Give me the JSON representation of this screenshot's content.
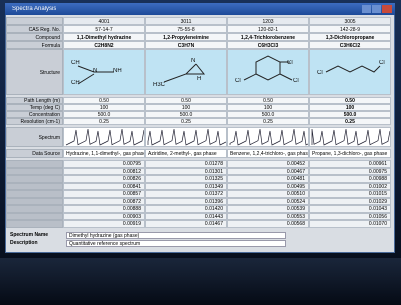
{
  "window": {
    "title": "Spectra Analysis"
  },
  "table": {
    "columns": [
      "4001",
      "3011",
      "1203",
      "3005"
    ],
    "rows": [
      {
        "label": "CAS Reg. No.",
        "cells": [
          "57-14-7",
          "75-55-8",
          "120-82-1",
          "142-28-9"
        ]
      },
      {
        "label": "Compound",
        "cells": [
          "1,1-Dimethyl hydrazine",
          "1,2-Propyleneimine",
          "1,2,4-Trichlorobenzene",
          "1,3-Dichloropropane"
        ]
      },
      {
        "label": "Formula",
        "cells": [
          "C2H8N2",
          "C3H7N",
          "C6H3Cl3",
          "C3H6Cl2"
        ]
      }
    ],
    "structure_label": "Structure",
    "structures": [
      {
        "atoms": [
          "CH",
          "N",
          "NH",
          "CH"
        ]
      },
      {
        "atoms": [
          "H3C",
          "N",
          "H"
        ]
      },
      {
        "atoms": [
          "Cl",
          "Cl",
          "Cl"
        ]
      },
      {
        "atoms": [
          "Cl",
          "Cl"
        ]
      }
    ],
    "params": [
      {
        "label": "Path Length (m)",
        "cells": [
          "0.50",
          "0.50",
          "0.50",
          "0.50"
        ]
      },
      {
        "label": "Temp (deg C)",
        "cells": [
          "100",
          "100",
          "100",
          "100"
        ]
      },
      {
        "label": "Concentration",
        "cells": [
          "500.0",
          "500.0",
          "500.0",
          "500.0"
        ]
      },
      {
        "label": "Resolution (cm-1)",
        "cells": [
          "0.25",
          "0.25",
          "0.25",
          "0.25"
        ]
      }
    ],
    "spectrum_label": "Spectrum",
    "selector_label": "Data Source",
    "selectors": [
      "Hydrazine, 1,1-dimethyl-, gas phase",
      "Aziridine, 2-methyl-, gas phase",
      "Benzene, 1,2,4-trichloro-, gas phase",
      "Propane, 1,3-dichloro-, gas phase"
    ],
    "values": [
      [
        "0.00795",
        "0.01278",
        "0.00452",
        "0.00961"
      ],
      [
        "0.00812",
        "0.01301",
        "0.00467",
        "0.00975"
      ],
      [
        "0.00826",
        "0.01325",
        "0.00481",
        "0.00988"
      ],
      [
        "0.00841",
        "0.01349",
        "0.00495",
        "0.01002"
      ],
      [
        "0.00857",
        "0.01372",
        "0.00510",
        "0.01015"
      ],
      [
        "0.00872",
        "0.01396",
        "0.00524",
        "0.01029"
      ],
      [
        "0.00888",
        "0.01420",
        "0.00539",
        "0.01043"
      ],
      [
        "0.00903",
        "0.01443",
        "0.00553",
        "0.01056"
      ],
      [
        "0.00919",
        "0.01467",
        "0.00568",
        "0.01070"
      ]
    ]
  },
  "fields": [
    {
      "label": "Spectrum Name",
      "value": "Dimethyl hydrazine (gas phase)"
    },
    {
      "label": "Description",
      "value": "Quantitative reference spectrum"
    }
  ]
}
